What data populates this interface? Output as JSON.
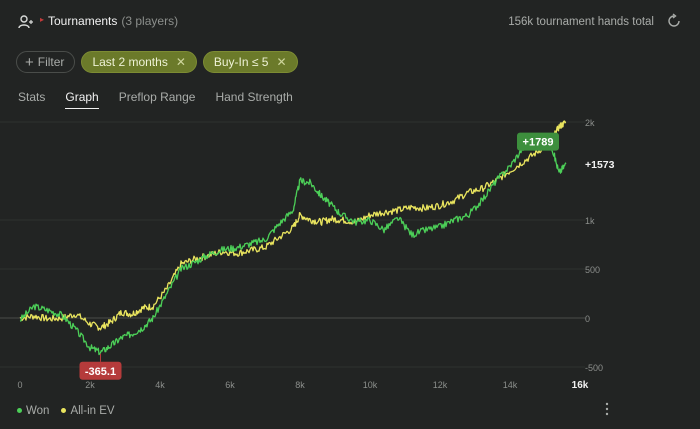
{
  "header": {
    "title": "Tournaments",
    "subtitle": "(3 players)",
    "hands_total": "156k tournament hands total"
  },
  "filters": {
    "add_label": "Filter",
    "active": [
      {
        "label": "Last 2 months"
      },
      {
        "label": "Buy-In ≤ 5"
      }
    ]
  },
  "tabs": [
    "Stats",
    "Graph",
    "Preflop Range",
    "Hand Strength"
  ],
  "active_tab": "Graph",
  "colors": {
    "won": "#4ccf58",
    "allin_ev": "#e9e45e",
    "min_badge": "#b53b3b",
    "max_badge": "#3d8f3d"
  },
  "chart_data": {
    "type": "line",
    "x_ticks": [
      "0",
      "2k",
      "4k",
      "6k",
      "8k",
      "10k",
      "12k",
      "14k",
      "16k"
    ],
    "y_ticks": [
      "2k",
      "1k",
      "500",
      "0",
      "-500"
    ],
    "xlim": [
      0,
      16000
    ],
    "ylim": [
      -500,
      2000
    ],
    "series": [
      {
        "name": "Won",
        "x": [
          0,
          400,
          800,
          1200,
          1600,
          2000,
          2300,
          2600,
          2900,
          3200,
          3500,
          3800,
          4200,
          4600,
          5000,
          5400,
          5800,
          6200,
          6600,
          7000,
          7400,
          7800,
          8000,
          8300,
          8600,
          8900,
          9200,
          9600,
          10000,
          10400,
          10800,
          11200,
          11600,
          12000,
          12400,
          12800,
          13200,
          13600,
          14000,
          14400,
          14800,
          15200,
          15400,
          15600
        ],
        "y": [
          -20,
          120,
          80,
          30,
          -120,
          -300,
          -350,
          -280,
          -200,
          -160,
          -100,
          0,
          250,
          500,
          570,
          650,
          700,
          720,
          760,
          800,
          960,
          1100,
          1400,
          1380,
          1250,
          1150,
          1050,
          980,
          1000,
          900,
          1020,
          850,
          900,
          930,
          1000,
          1050,
          1200,
          1400,
          1550,
          1750,
          1780,
          1740,
          1480,
          1573
        ]
      },
      {
        "name": "All-in EV",
        "x": [
          0,
          400,
          800,
          1200,
          1600,
          2000,
          2300,
          2600,
          2900,
          3200,
          3500,
          3800,
          4200,
          4600,
          5000,
          5400,
          5800,
          6200,
          6600,
          7000,
          7400,
          7800,
          8000,
          8300,
          8600,
          8900,
          9200,
          9600,
          10000,
          10400,
          10800,
          11200,
          11600,
          12000,
          12400,
          12800,
          13200,
          13600,
          14000,
          14400,
          14800,
          15200,
          15400,
          15600
        ],
        "y": [
          0,
          20,
          -10,
          0,
          40,
          -60,
          -100,
          -40,
          60,
          40,
          100,
          120,
          300,
          550,
          600,
          640,
          680,
          660,
          690,
          720,
          820,
          920,
          1050,
          1000,
          980,
          1010,
          1000,
          980,
          1050,
          1080,
          1100,
          1130,
          1120,
          1150,
          1200,
          1280,
          1320,
          1400,
          1500,
          1600,
          1700,
          1820,
          1950,
          2000
        ]
      }
    ],
    "min_label": "-365.1",
    "max_label": "+1789",
    "end_label": "+1573"
  },
  "legend": [
    "Won",
    "All-in EV"
  ]
}
